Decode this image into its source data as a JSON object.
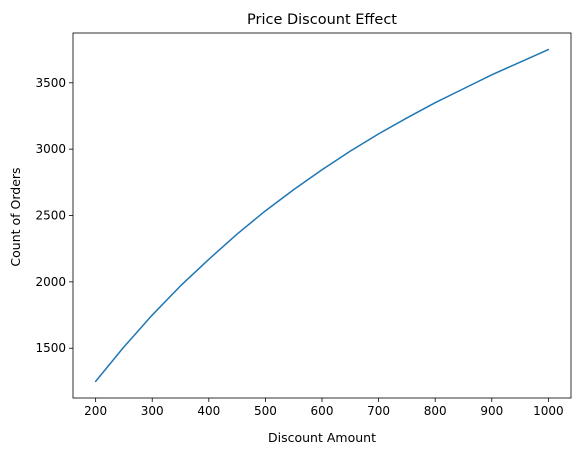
{
  "chart_data": {
    "type": "line",
    "title": "Price Discount Effect",
    "xlabel": "Discount Amount",
    "ylabel": "Count of Orders",
    "xlim": [
      160,
      1040
    ],
    "ylim": [
      1125,
      3875
    ],
    "xticks": [
      200,
      300,
      400,
      500,
      600,
      700,
      800,
      900,
      1000
    ],
    "yticks": [
      1500,
      2000,
      2500,
      3000,
      3500
    ],
    "grid": false,
    "series": [
      {
        "color": "#1f77b4",
        "x": [
          200,
          250,
          300,
          350,
          400,
          450,
          500,
          550,
          600,
          650,
          700,
          750,
          800,
          850,
          900,
          950,
          1000
        ],
        "y": [
          1250,
          1510,
          1750,
          1970,
          2170,
          2360,
          2535,
          2695,
          2845,
          2985,
          3115,
          3235,
          3350,
          3455,
          3560,
          3655,
          3750
        ]
      }
    ]
  }
}
